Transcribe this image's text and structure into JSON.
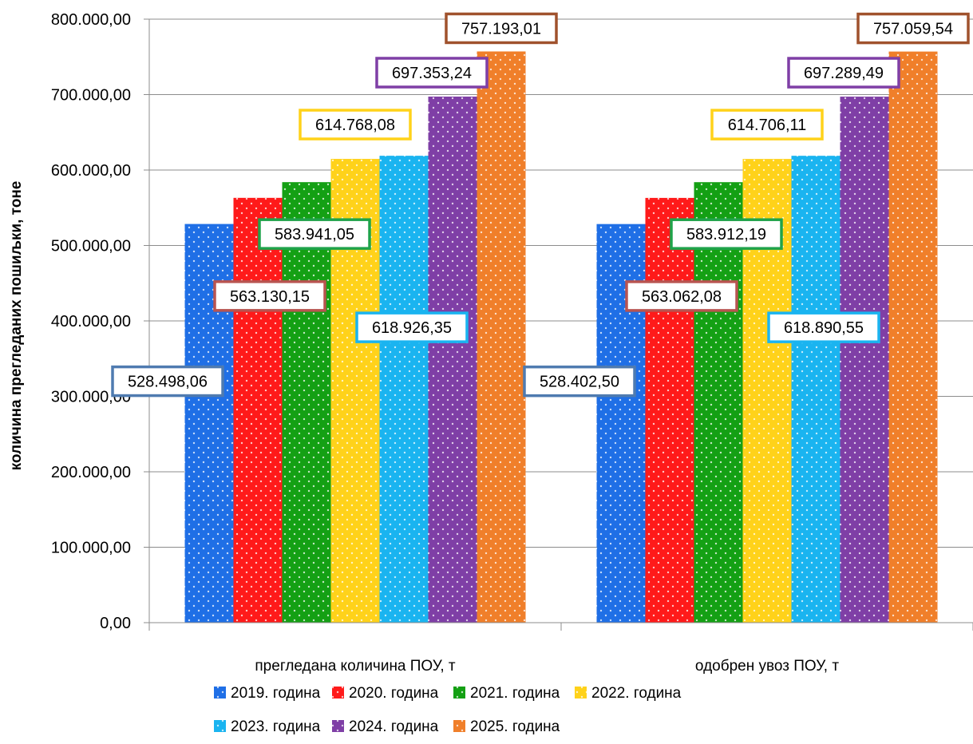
{
  "chart_data": {
    "type": "bar",
    "ylabel": "количина прегледаних пошиљки, тоне",
    "xlabel": "",
    "ylim": [
      0,
      800000
    ],
    "y_ticks": [
      "0,00",
      "100.000,00",
      "200.000,00",
      "300.000,00",
      "400.000,00",
      "500.000,00",
      "600.000,00",
      "700.000,00",
      "800.000,00"
    ],
    "grid": true,
    "legend_position": "bottom",
    "categories": [
      "прегледана количина ПОУ, т",
      "одобрен увоз ПОУ, т"
    ],
    "series": [
      {
        "name": "2019. година",
        "color": "#1F6FE6",
        "values": [
          528498.06,
          528402.5
        ],
        "labels": [
          "528.498,06",
          "528.402,50"
        ],
        "label_border": "#4F7BB0"
      },
      {
        "name": "2020. година",
        "color": "#FF1A1A",
        "values": [
          563130.15,
          563062.08
        ],
        "labels": [
          "563.130,15",
          "563.062,08"
        ],
        "label_border": "#B85450"
      },
      {
        "name": "2021. година",
        "color": "#14A014",
        "values": [
          583941.05,
          583912.19
        ],
        "labels": [
          "583.941,05",
          "583.912,19"
        ],
        "label_border": "#1FA34A"
      },
      {
        "name": "2022. година",
        "color": "#FFD21A",
        "values": [
          614768.08,
          614706.11
        ],
        "labels": [
          "614.768,08",
          "614.706,11"
        ],
        "label_border": "#FFD21A"
      },
      {
        "name": "2023. година",
        "color": "#1AB4F0",
        "values": [
          618926.35,
          618890.55
        ],
        "labels": [
          "618.926,35",
          "618.890,55"
        ],
        "label_border": "#1AB4F0"
      },
      {
        "name": "2024. година",
        "color": "#7F3FA6",
        "values": [
          697353.24,
          697289.49
        ],
        "labels": [
          "697.353,24",
          "697.289,49"
        ],
        "label_border": "#7F3FA6"
      },
      {
        "name": "2025. година",
        "color": "#F07F2A",
        "values": [
          757193.01,
          757059.54
        ],
        "labels": [
          "757.193,01",
          "757.059,54"
        ],
        "label_border": "#A0522D"
      }
    ]
  }
}
